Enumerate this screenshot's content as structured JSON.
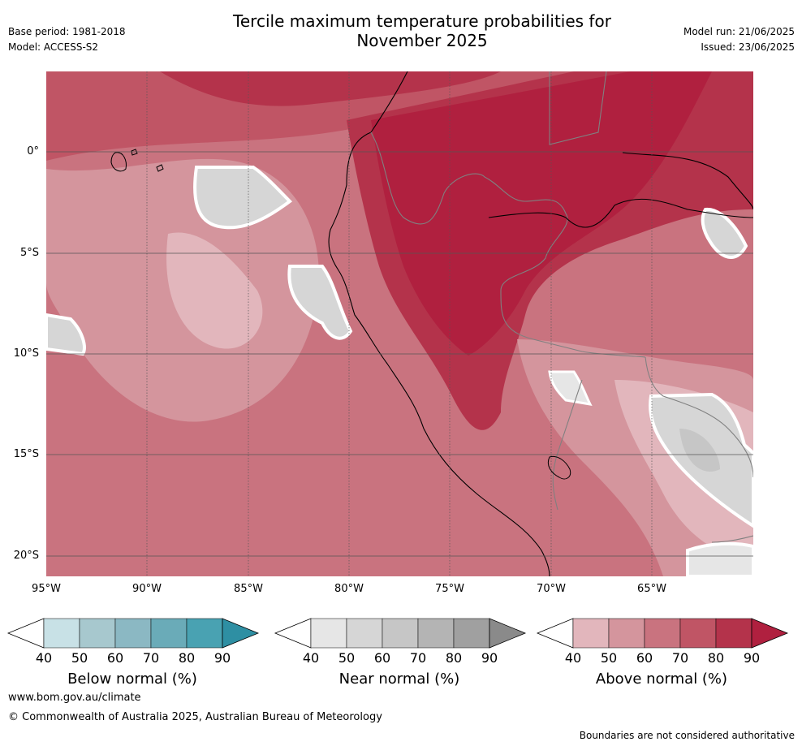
{
  "header": {
    "title_line1": "Tercile maximum temperature probabilities for",
    "title_line2": "November 2025",
    "base_period": "Base period: 1981-2018",
    "model": "Model: ACCESS-S2",
    "model_run": "Model run: 21/06/2025",
    "issued": "Issued: 23/06/2025"
  },
  "map": {
    "lat_labels": [
      "0°",
      "5°S",
      "10°S",
      "15°S",
      "20°S"
    ],
    "lon_labels": [
      "95°W",
      "90°W",
      "85°W",
      "80°W",
      "75°W",
      "70°W",
      "65°W"
    ],
    "extent": {
      "lon": [
        -95,
        -60
      ],
      "lat": [
        -21,
        4
      ]
    },
    "dominant_category": "Above normal"
  },
  "colorbars": [
    {
      "name": "below",
      "label": "Below normal (%)",
      "ticks": [
        "40",
        "50",
        "60",
        "70",
        "80",
        "90"
      ],
      "colors": [
        "#c8e1e6",
        "#a7c8ce",
        "#8bb8c3",
        "#6aabb8",
        "#49a2b2",
        "#2e8fa3"
      ]
    },
    {
      "name": "near",
      "label": "Near normal (%)",
      "ticks": [
        "40",
        "50",
        "60",
        "70",
        "80",
        "90"
      ],
      "colors": [
        "#e6e6e6",
        "#d6d6d6",
        "#c6c6c6",
        "#b4b4b4",
        "#a0a0a0",
        "#8a8a8a"
      ]
    },
    {
      "name": "above",
      "label": "Above normal (%)",
      "ticks": [
        "40",
        "50",
        "60",
        "70",
        "80",
        "90"
      ],
      "colors": [
        "#e2b6bc",
        "#d4959d",
        "#c9737f",
        "#c05565",
        "#b4334b",
        "#b0203f"
      ]
    }
  ],
  "footer": {
    "url": "www.bom.gov.au/climate",
    "copyright": "© Commonwealth of Australia 2025, Australian Bureau of Meteorology",
    "disclaimer": "Boundaries are not considered authoritative"
  }
}
